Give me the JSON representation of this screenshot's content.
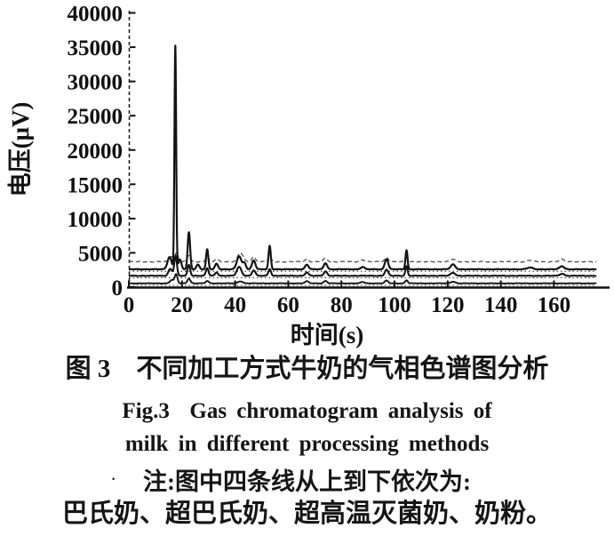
{
  "figure": {
    "caption_cn": "图 3　不同加工方式牛奶的气相色谱图分析",
    "caption_en_line1": "Fig.3  Gas chromatogram analysis of",
    "caption_en_line2": "milk in different processing methods",
    "note_line1": "注:图中四条线从上到下依次为:",
    "note_line2": "巴氏奶、超巴氏奶、超高温灭菌奶、奶粉。",
    "note_bullet": "·"
  },
  "colors": {
    "ink": "#111111",
    "trace_dark": "#131313",
    "trace_light": "#4d4d4d",
    "background": "#ffffff"
  },
  "chart_data": {
    "type": "line",
    "title": "",
    "xlabel": "时间(s)",
    "ylabel": "电压(μV)",
    "xlim": [
      0,
      177
    ],
    "ylim": [
      0,
      40000
    ],
    "x_ticks": [
      0,
      20,
      40,
      60,
      80,
      100,
      120,
      140,
      160
    ],
    "y_ticks": [
      0,
      5000,
      10000,
      15000,
      20000,
      25000,
      30000,
      35000,
      40000
    ],
    "grid": false,
    "legend_position": "none",
    "series_order_note": "四条线从上到下依次为:巴氏奶、超巴氏奶、超高温灭菌奶、奶粉",
    "max_peak_uV": 35200,
    "series": [
      {
        "name": "巴氏奶",
        "baseline_uV": 3700,
        "line_style": "dashed",
        "peaks_t_height_width": [
          [
            16,
            800,
            1.1
          ],
          [
            18,
            1300,
            0.8
          ],
          [
            22.5,
            900,
            0.9
          ],
          [
            29.5,
            800,
            0.8
          ],
          [
            33,
            400,
            0.9
          ],
          [
            42,
            1300,
            1.4
          ],
          [
            47,
            700,
            1.0
          ],
          [
            53,
            800,
            0.8
          ],
          [
            67,
            400,
            1.0
          ],
          [
            74,
            500,
            1.0
          ],
          [
            88,
            300,
            1.1
          ],
          [
            97,
            600,
            1.0
          ],
          [
            104.5,
            600,
            0.8
          ],
          [
            122,
            350,
            1.4
          ],
          [
            151,
            200,
            1.5
          ],
          [
            163,
            350,
            1.3
          ]
        ]
      },
      {
        "name": "超巴氏奶",
        "baseline_uV": 2600,
        "line_style": "solid",
        "peaks_t_height_width": [
          [
            15.3,
            1800,
            1.1
          ],
          [
            17.5,
            32600,
            0.45
          ],
          [
            19.2,
            1400,
            0.8
          ],
          [
            22.6,
            5400,
            0.65
          ],
          [
            26,
            700,
            0.8
          ],
          [
            29.5,
            2900,
            0.6
          ],
          [
            33,
            800,
            0.8
          ],
          [
            41.5,
            1900,
            1.2
          ],
          [
            43.5,
            900,
            0.8
          ],
          [
            47,
            1300,
            0.9
          ],
          [
            53,
            3400,
            0.6
          ],
          [
            67,
            700,
            0.9
          ],
          [
            74,
            900,
            0.9
          ],
          [
            88,
            350,
            1.0
          ],
          [
            97,
            1500,
            0.9
          ],
          [
            104.5,
            2800,
            0.55
          ],
          [
            122,
            700,
            1.2
          ],
          [
            151,
            250,
            1.5
          ],
          [
            163,
            450,
            1.2
          ]
        ]
      },
      {
        "name": "超高温灭菌奶",
        "baseline_uV": 1650,
        "line_style": "solid",
        "peaks_t_height_width": [
          [
            15.6,
            1000,
            1.0
          ],
          [
            17.6,
            2900,
            0.7
          ],
          [
            22.6,
            1600,
            0.7
          ],
          [
            29.5,
            1100,
            0.7
          ],
          [
            33,
            500,
            0.8
          ],
          [
            41.5,
            1300,
            1.2
          ],
          [
            47,
            800,
            0.9
          ],
          [
            53,
            1000,
            0.7
          ],
          [
            67,
            500,
            0.9
          ],
          [
            74,
            650,
            0.9
          ],
          [
            97,
            900,
            0.9
          ],
          [
            104.5,
            1400,
            0.6
          ],
          [
            122,
            450,
            1.2
          ],
          [
            163,
            300,
            1.2
          ]
        ]
      },
      {
        "name": "奶粉",
        "baseline_uV": 550,
        "line_style": "solid",
        "peaks_t_height_width": [
          [
            16.2,
            500,
            1.0
          ],
          [
            17.8,
            1300,
            0.7
          ],
          [
            22.6,
            700,
            0.8
          ],
          [
            29.5,
            350,
            0.8
          ],
          [
            42,
            300,
            1.2
          ],
          [
            67,
            300,
            1.0
          ],
          [
            74,
            350,
            0.9
          ],
          [
            88,
            200,
            1.0
          ],
          [
            97,
            400,
            0.9
          ],
          [
            104.5,
            450,
            0.7
          ],
          [
            122,
            250,
            1.2
          ]
        ]
      }
    ]
  }
}
